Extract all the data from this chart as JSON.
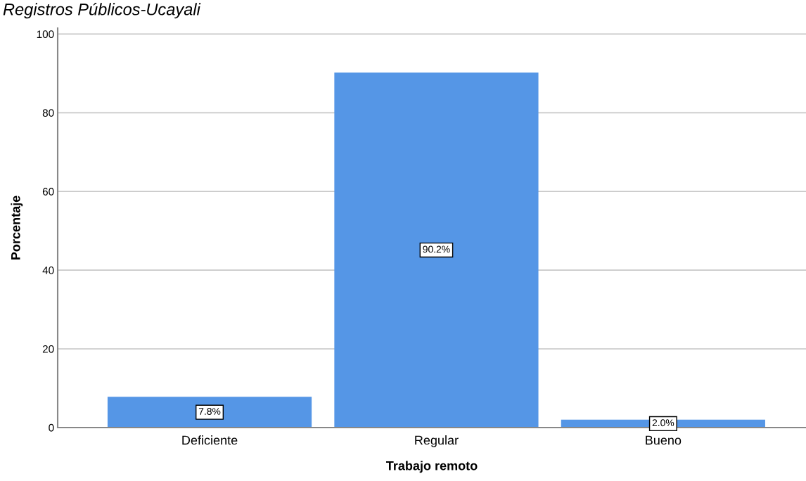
{
  "chart_data": {
    "type": "bar",
    "title": "Registros Públicos-Ucayali",
    "xlabel": "Trabajo remoto",
    "ylabel": "Porcentaje",
    "categories": [
      "Deficiente",
      "Regular",
      "Bueno"
    ],
    "values": [
      7.8,
      90.2,
      2.0
    ],
    "color": "#5596e6",
    "value_labels": [
      "7.8%",
      "90.2%",
      "2.0%"
    ],
    "ylim": [
      0,
      101.5
    ],
    "yticks": [
      0,
      20,
      40,
      60,
      80,
      100
    ],
    "grid": "y",
    "legend": false
  }
}
